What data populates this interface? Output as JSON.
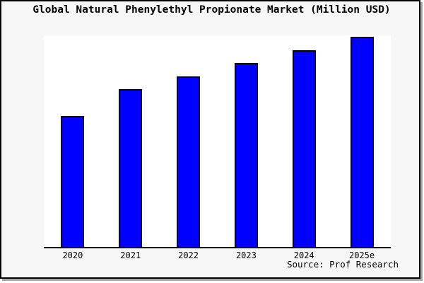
{
  "window": {
    "background": "#f7f7f7",
    "frame_border_color": "#000000",
    "shadow_color": "#a6a6a6"
  },
  "chart_data": {
    "type": "bar",
    "title": "Global Natural Phenylethyl Propionate Market (Million USD)",
    "categories": [
      "2020",
      "2021",
      "2022",
      "2023",
      "2024",
      "2025e"
    ],
    "values": [
      62.5,
      75.3,
      81.3,
      87.6,
      93.6,
      100
    ],
    "xlabel": "",
    "ylabel": "",
    "ylim": [
      0,
      100.7
    ],
    "grid": false,
    "legend": false,
    "value_axis_labels_visible": false,
    "bar_color": "#0000ff",
    "bar_border_color": "#000000",
    "plot_background": "#ffffff",
    "source_note": "Source: Prof Research"
  }
}
